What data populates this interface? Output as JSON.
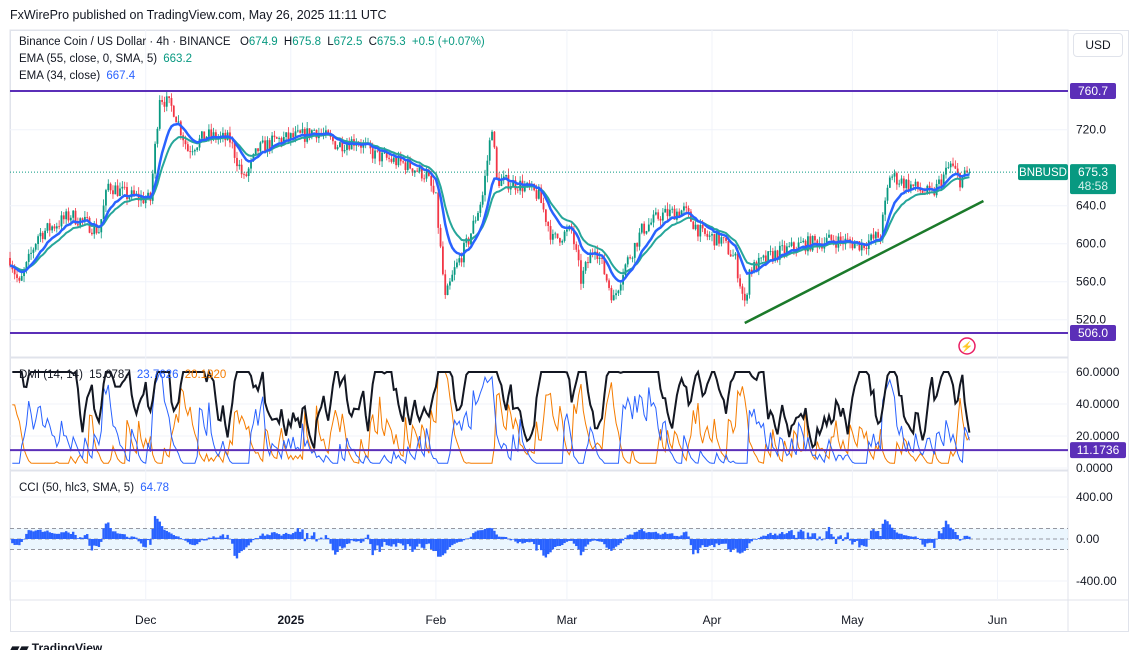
{
  "header": {
    "published": "FxWirePro published on TradingView.com, May 26, 2025 11:11 UTC"
  },
  "legend": {
    "symbol": "Binance Coin / US Dollar · 4h · BINANCE",
    "o_label": "O",
    "o": "674.9",
    "h_label": "H",
    "h": "675.8",
    "l_label": "L",
    "l": "672.5",
    "c_label": "C",
    "c": "675.3",
    "change": "+0.5 (+0.07%)",
    "ema55_label": "EMA (55, close, 0, SMA, 5)",
    "ema55_value": "663.2",
    "ema34_label": "EMA (34, close)",
    "ema34_value": "667.4",
    "dmi_label": "DMI (14, 14)",
    "dmi_adx": "15.6787",
    "dmi_plus": "23.7626",
    "dmi_minus": "20.1920",
    "cci_label": "CCI (50, hlc3, SMA, 5)",
    "cci_value": "64.78"
  },
  "currency_button": "USD",
  "footer_logo": "TradingView",
  "colors": {
    "up": "#089981",
    "down": "#f23645",
    "ema34": "#2962ff",
    "ema55": "#26a69a",
    "level": "#5b2fb8",
    "trend": "#1b7a2a",
    "adx": "#131722",
    "plus_di": "#2962ff",
    "minus_di": "#f57c00",
    "cci": "#2962ff"
  },
  "chart_data": {
    "type": "candlestick",
    "title": "Binance Coin / US Dollar · 4h · BINANCE",
    "start_date": "2024-11-02",
    "end_date": "2025-05-26",
    "price_keypoints": [
      [
        "2024-11-02",
        585
      ],
      [
        "2024-11-04",
        556
      ],
      [
        "2024-11-08",
        609
      ],
      [
        "2024-11-15",
        630
      ],
      [
        "2024-11-21",
        614
      ],
      [
        "2024-11-23",
        662
      ],
      [
        "2024-11-27",
        651
      ],
      [
        "2024-12-02",
        646
      ],
      [
        "2024-12-04",
        756
      ],
      [
        "2024-12-07",
        741
      ],
      [
        "2024-12-10",
        699
      ],
      [
        "2024-12-14",
        714
      ],
      [
        "2024-12-19",
        709
      ],
      [
        "2024-12-22",
        667
      ],
      [
        "2024-12-25",
        699
      ],
      [
        "2024-12-29",
        709
      ],
      [
        "2025-01-04",
        714
      ],
      [
        "2025-01-06",
        720
      ],
      [
        "2025-01-11",
        704
      ],
      [
        "2025-01-15",
        709
      ],
      [
        "2025-01-19",
        693
      ],
      [
        "2025-01-26",
        683
      ],
      [
        "2025-01-30",
        672
      ],
      [
        "2025-02-01",
        646
      ],
      [
        "2025-02-03",
        541
      ],
      [
        "2025-02-05",
        572
      ],
      [
        "2025-02-08",
        604
      ],
      [
        "2025-02-11",
        651
      ],
      [
        "2025-02-13",
        725
      ],
      [
        "2025-02-14",
        667
      ],
      [
        "2025-02-19",
        662
      ],
      [
        "2025-02-23",
        651
      ],
      [
        "2025-02-26",
        604
      ],
      [
        "2025-03-02",
        614
      ],
      [
        "2025-03-04",
        562
      ],
      [
        "2025-03-07",
        599
      ],
      [
        "2025-03-11",
        541
      ],
      [
        "2025-03-13",
        572
      ],
      [
        "2025-03-17",
        614
      ],
      [
        "2025-03-21",
        630
      ],
      [
        "2025-03-26",
        635
      ],
      [
        "2025-03-30",
        609
      ],
      [
        "2025-04-03",
        604
      ],
      [
        "2025-04-06",
        583
      ],
      [
        "2025-04-08",
        535
      ],
      [
        "2025-04-09",
        572
      ],
      [
        "2025-04-14",
        588
      ],
      [
        "2025-04-20",
        599
      ],
      [
        "2025-04-27",
        604
      ],
      [
        "2025-05-03",
        599
      ],
      [
        "2025-05-07",
        609
      ],
      [
        "2025-05-09",
        672
      ],
      [
        "2025-05-13",
        662
      ],
      [
        "2025-05-18",
        651
      ],
      [
        "2025-05-22",
        683
      ],
      [
        "2025-05-24",
        667
      ],
      [
        "2025-05-26",
        675.3
      ]
    ],
    "price_axis": {
      "ticks": [
        "720.0",
        "640.0",
        "600.0",
        "560.0",
        "520.0"
      ],
      "tick_values": [
        720,
        640,
        600,
        560,
        520
      ],
      "range": [
        480,
        790
      ]
    },
    "levels": [
      {
        "value": 760.7,
        "label": "760.7"
      },
      {
        "value": 506.0,
        "label": "506.0"
      }
    ],
    "last_price": {
      "symbol": "BNBUSD",
      "value": "675.3",
      "countdown": "48:58",
      "numeric": 675.3
    },
    "trendline": {
      "from": [
        "2025-04-08",
        516.5
      ],
      "to": [
        "2025-05-29",
        645
      ]
    },
    "dmi_axis": {
      "ticks": [
        "60.0000",
        "40.0000",
        "20.0000",
        "0.0000"
      ],
      "tick_values": [
        60,
        40,
        20,
        0
      ],
      "level": 11.1736,
      "level_label": "11.1736"
    },
    "cci_axis": {
      "ticks": [
        "400.00",
        "0.00",
        "-400.00"
      ],
      "tick_values": [
        400,
        0,
        -400
      ],
      "band": [
        -100,
        100
      ]
    },
    "time_axis": [
      {
        "label": "Dec",
        "date": "2024-12-01",
        "bold": false
      },
      {
        "label": "2025",
        "date": "2025-01-01",
        "bold": true
      },
      {
        "label": "Feb",
        "date": "2025-02-01",
        "bold": false
      },
      {
        "label": "Mar",
        "date": "2025-03-01",
        "bold": false
      },
      {
        "label": "Apr",
        "date": "2025-04-01",
        "bold": false
      },
      {
        "label": "May",
        "date": "2025-05-01",
        "bold": false
      },
      {
        "label": "Jun",
        "date": "2025-06-01",
        "bold": false
      }
    ]
  }
}
